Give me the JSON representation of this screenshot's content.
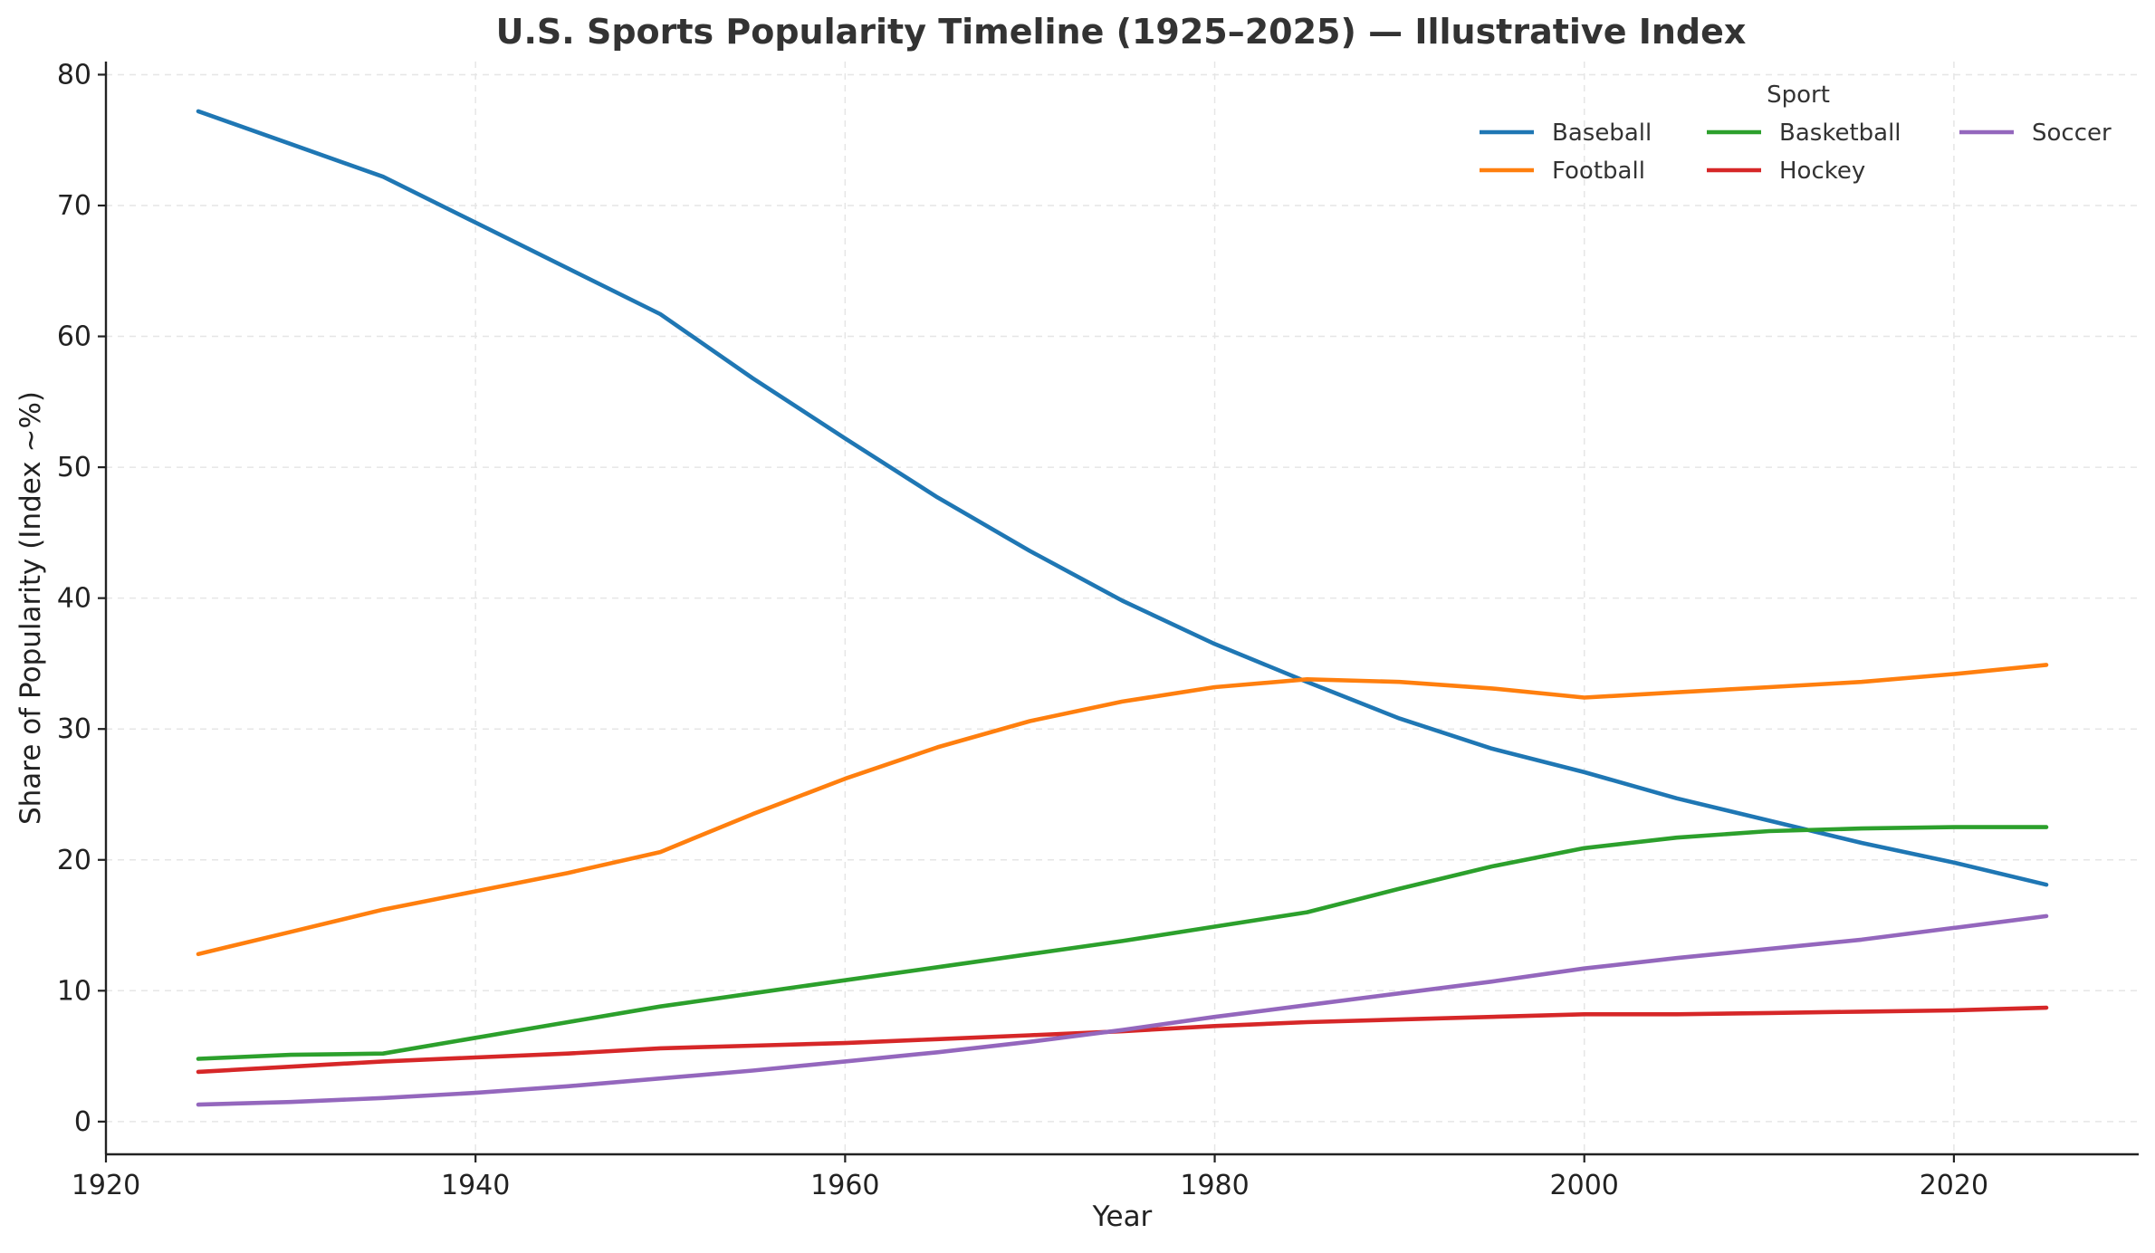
{
  "chart_data": {
    "type": "line",
    "title": "U.S. Sports Popularity Timeline (1925–2025) — Illustrative Index",
    "xlabel": "Year",
    "ylabel": "Share of Popularity (Index ~%)",
    "xlim": [
      1920,
      2030
    ],
    "ylim": [
      -2.5,
      81
    ],
    "x_ticks": [
      1920,
      1940,
      1960,
      1980,
      2000,
      2020
    ],
    "y_ticks": [
      0,
      10,
      20,
      30,
      40,
      50,
      60,
      70,
      80
    ],
    "grid": true,
    "legend": {
      "title": "Sport",
      "placement": "top-right",
      "columns": 3
    },
    "x": [
      1925,
      1930,
      1935,
      1940,
      1945,
      1950,
      1955,
      1960,
      1965,
      1970,
      1975,
      1980,
      1985,
      1990,
      1995,
      2000,
      2005,
      2010,
      2015,
      2020,
      2025
    ],
    "series": [
      {
        "name": "Baseball",
        "color": "#1f77b4",
        "values": [
          77.2,
          74.7,
          72.2,
          68.7,
          65.2,
          61.7,
          56.8,
          52.2,
          47.7,
          43.6,
          39.8,
          36.5,
          33.6,
          30.8,
          28.5,
          26.7,
          24.7,
          23.0,
          21.3,
          19.8,
          18.1
        ]
      },
      {
        "name": "Football",
        "color": "#ff7f0e",
        "values": [
          12.8,
          14.5,
          16.2,
          17.6,
          19.0,
          20.6,
          23.5,
          26.2,
          28.6,
          30.6,
          32.1,
          33.2,
          33.8,
          33.6,
          33.1,
          32.4,
          32.8,
          33.2,
          33.6,
          34.2,
          34.9
        ]
      },
      {
        "name": "Basketball",
        "color": "#2ca02c",
        "values": [
          4.8,
          5.1,
          5.2,
          6.4,
          7.6,
          8.8,
          9.8,
          10.8,
          11.8,
          12.8,
          13.8,
          14.9,
          16.0,
          17.8,
          19.5,
          20.9,
          21.7,
          22.2,
          22.4,
          22.5,
          22.5
        ]
      },
      {
        "name": "Hockey",
        "color": "#d62728",
        "values": [
          3.8,
          4.2,
          4.6,
          4.9,
          5.2,
          5.6,
          5.8,
          6.0,
          6.3,
          6.6,
          6.9,
          7.3,
          7.6,
          7.8,
          8.0,
          8.2,
          8.2,
          8.3,
          8.4,
          8.5,
          8.7
        ]
      },
      {
        "name": "Soccer",
        "color": "#9467bd",
        "values": [
          1.3,
          1.5,
          1.8,
          2.2,
          2.7,
          3.3,
          3.9,
          4.6,
          5.3,
          6.1,
          7.0,
          8.0,
          8.9,
          9.8,
          10.7,
          11.7,
          12.5,
          13.2,
          13.9,
          14.8,
          15.7
        ]
      }
    ]
  }
}
